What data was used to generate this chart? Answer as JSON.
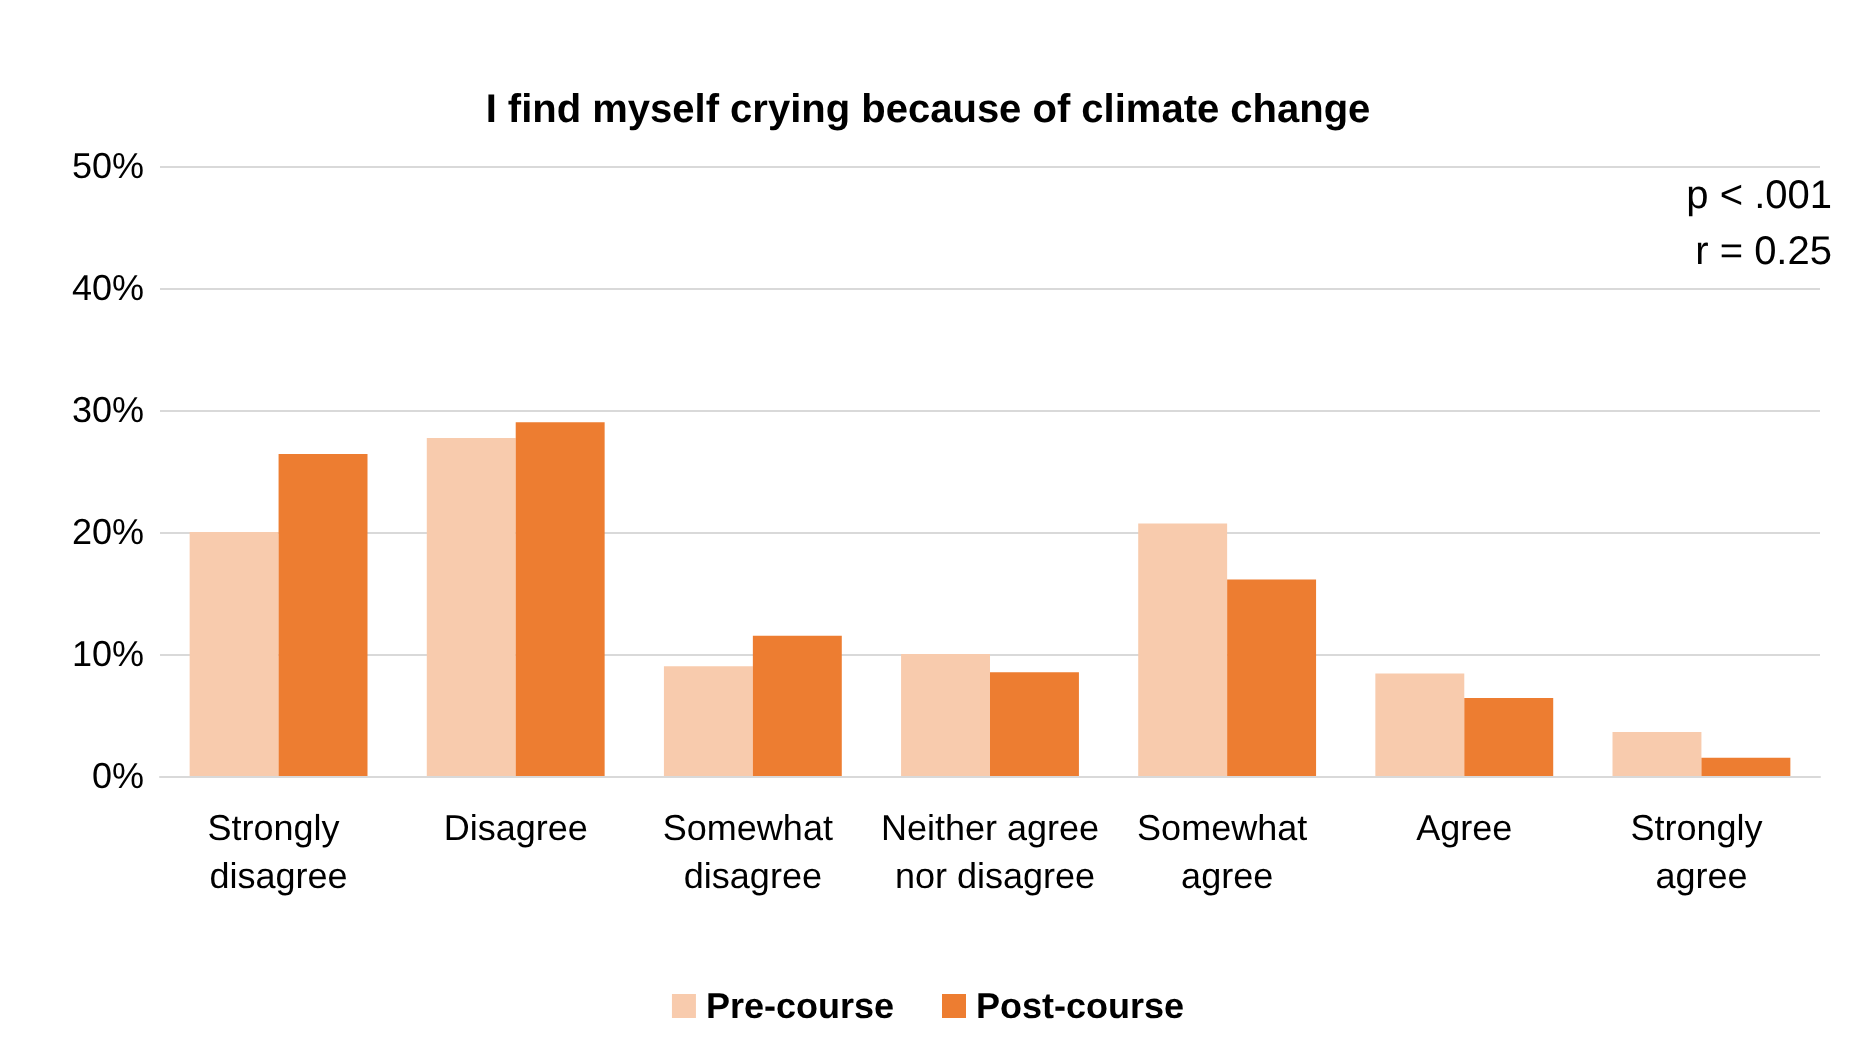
{
  "chart_data": {
    "type": "bar",
    "title": "I find myself crying because of climate change",
    "categories": [
      "Strongly disagree",
      "Disagree",
      "Somewhat disagree",
      "Neither agree nor disagree",
      "Somewhat agree",
      "Agree",
      "Strongly agree"
    ],
    "series": [
      {
        "name": "Pre-course",
        "color": "#f8cbad",
        "values": [
          20.0,
          27.7,
          9.0,
          10.0,
          20.7,
          8.4,
          3.6
        ]
      },
      {
        "name": "Post-course",
        "color": "#ed7d31",
        "values": [
          26.4,
          29.0,
          11.5,
          8.5,
          16.1,
          6.4,
          1.5
        ]
      }
    ],
    "ylim": [
      0,
      50
    ],
    "yticks": [
      {
        "value": 0,
        "label": "0%"
      },
      {
        "value": 10,
        "label": "10%"
      },
      {
        "value": 20,
        "label": "20%"
      },
      {
        "value": 30,
        "label": "30%"
      },
      {
        "value": 40,
        "label": "40%"
      },
      {
        "value": 50,
        "label": "50%"
      }
    ],
    "grid": "y",
    "legend": "bottom",
    "annotations": [
      "p < .001",
      "r = 0.25"
    ]
  }
}
